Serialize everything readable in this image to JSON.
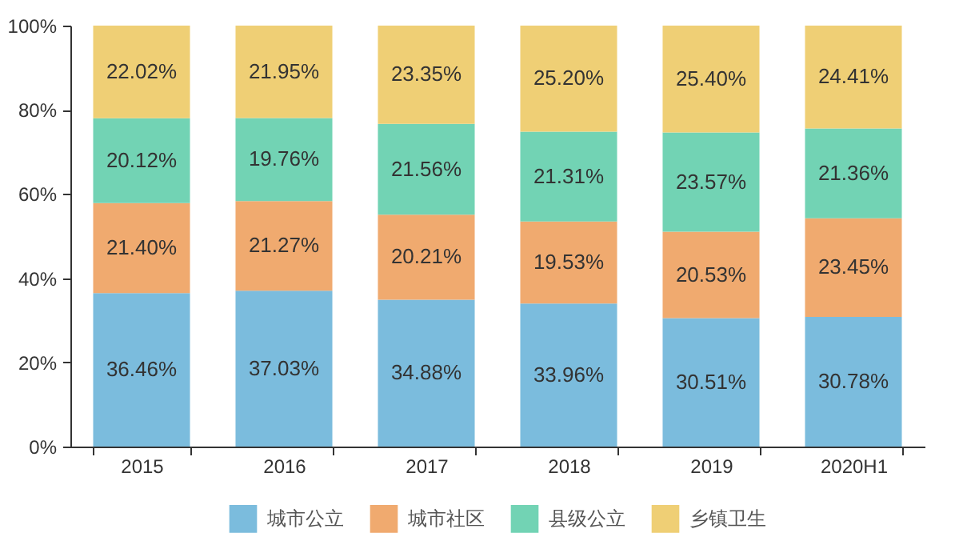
{
  "chart_data": {
    "type": "bar",
    "stacked": true,
    "categories": [
      "2015",
      "2016",
      "2017",
      "2018",
      "2019",
      "2020H1"
    ],
    "series": [
      {
        "name": "城市公立",
        "color": "#7bbcdd",
        "values": [
          36.46,
          37.03,
          34.88,
          33.96,
          30.51,
          30.78
        ],
        "value_labels": [
          "36.46%",
          "37.03%",
          "34.88%",
          "33.96%",
          "30.51%",
          "30.78%"
        ]
      },
      {
        "name": "城市社区",
        "color": "#f0aa6f",
        "values": [
          21.4,
          21.27,
          20.21,
          19.53,
          20.53,
          23.45
        ],
        "value_labels": [
          "21.40%",
          "21.27%",
          "20.21%",
          "19.53%",
          "20.53%",
          "23.45%"
        ]
      },
      {
        "name": "县级公立",
        "color": "#72d3b4",
        "values": [
          20.12,
          19.76,
          21.56,
          21.31,
          23.57,
          21.36
        ],
        "value_labels": [
          "20.12%",
          "19.76%",
          "21.56%",
          "21.31%",
          "23.57%",
          "21.36%"
        ]
      },
      {
        "name": "乡镇卫生",
        "color": "#efcf75",
        "values": [
          22.02,
          21.95,
          23.35,
          25.2,
          25.4,
          24.41
        ],
        "value_labels": [
          "22.02%",
          "21.95%",
          "23.35%",
          "25.20%",
          "25.40%",
          "24.41%"
        ]
      }
    ],
    "ylim": [
      0,
      100
    ],
    "yticks": [
      {
        "value": 0,
        "label": "0%"
      },
      {
        "value": 20,
        "label": "20%"
      },
      {
        "value": 40,
        "label": "40%"
      },
      {
        "value": 60,
        "label": "60%"
      },
      {
        "value": 80,
        "label": "80%"
      },
      {
        "value": 100,
        "label": "100%"
      }
    ],
    "grid": false,
    "legend": "bottom"
  }
}
